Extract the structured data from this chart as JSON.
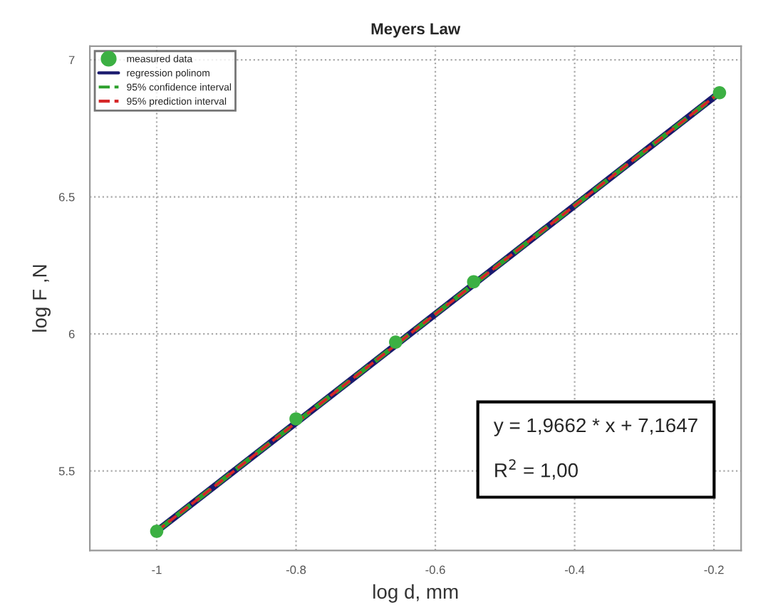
{
  "chart_data": {
    "type": "scatter",
    "title": "Meyers Law",
    "xlabel": "log d, mm",
    "ylabel": "log F ,N",
    "series": [
      {
        "name": "measured data",
        "marker": "circle",
        "color": "#3cb043",
        "x": [
          -1.0,
          -0.8,
          -0.657,
          -0.545,
          -0.192
        ],
        "values": [
          5.28,
          5.69,
          5.97,
          6.19,
          6.88
        ]
      },
      {
        "name": "regression polinom",
        "type": "line",
        "color": "#1a1a6e",
        "line_style": "solid",
        "x": [
          -1.0,
          -0.192
        ],
        "values": [
          5.28,
          6.88
        ]
      },
      {
        "name": "95% confidence interval",
        "type": "line",
        "color": "#2ca02c",
        "line_style": "dashed",
        "x": [
          -1.0,
          -0.192
        ],
        "values": [
          5.28,
          6.88
        ]
      },
      {
        "name": "95% prediction interval",
        "type": "line",
        "color": "#d62728",
        "line_style": "dashed",
        "x": [
          -1.0,
          -0.192
        ],
        "values": [
          5.28,
          6.88
        ]
      }
    ],
    "xlim": [
      -1.096,
      -0.161
    ],
    "ylim": [
      5.21,
      7.05
    ],
    "xticks": [
      -1,
      -0.8,
      -0.6,
      -0.4,
      -0.2
    ],
    "yticks": [
      5.5,
      6,
      6.5,
      7
    ],
    "grid": true,
    "legend": "top left",
    "annotations": [
      "y = 1,9662 * x + 7,1647\n\nR$^{2}$ = 1,00"
    ]
  }
}
